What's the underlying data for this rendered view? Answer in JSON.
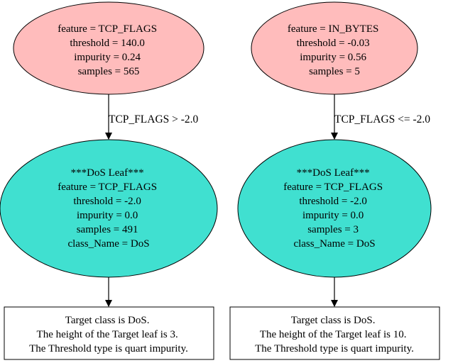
{
  "colors": {
    "split_node_fill": "#ffbcbc",
    "leaf_node_fill": "#40e0d0",
    "box_fill": "#ffffff",
    "stroke": "#000000"
  },
  "trees": [
    {
      "root": {
        "lines": [
          "feature = TCP_FLAGS",
          "threshold = 140.0",
          "impurity = 0.24",
          "samples = 565"
        ]
      },
      "edge_label": "TCP_FLAGS > -2.0",
      "leaf": {
        "lines": [
          "***DoS Leaf***",
          "feature = TCP_FLAGS",
          "threshold = -2.0",
          "impurity = 0.0",
          "samples = 491",
          "class_Name = DoS"
        ]
      },
      "summary": {
        "lines": [
          "Target class is DoS.",
          "The height of the Target leaf is 3.",
          "The Threshold type is quart impurity."
        ]
      }
    },
    {
      "root": {
        "lines": [
          "feature = IN_BYTES",
          "threshold = -0.03",
          "impurity = 0.56",
          "samples = 5"
        ]
      },
      "edge_label": "TCP_FLAGS <= -2.0",
      "leaf": {
        "lines": [
          "***DoS Leaf***",
          "feature = TCP_FLAGS",
          "threshold = -2.0",
          "impurity = 0.0",
          "samples = 3",
          "class_Name = DoS"
        ]
      },
      "summary": {
        "lines": [
          "Target class is DoS.",
          "The height of the Target leaf is 10.",
          "The Threshold type is quart impurity."
        ]
      }
    }
  ]
}
